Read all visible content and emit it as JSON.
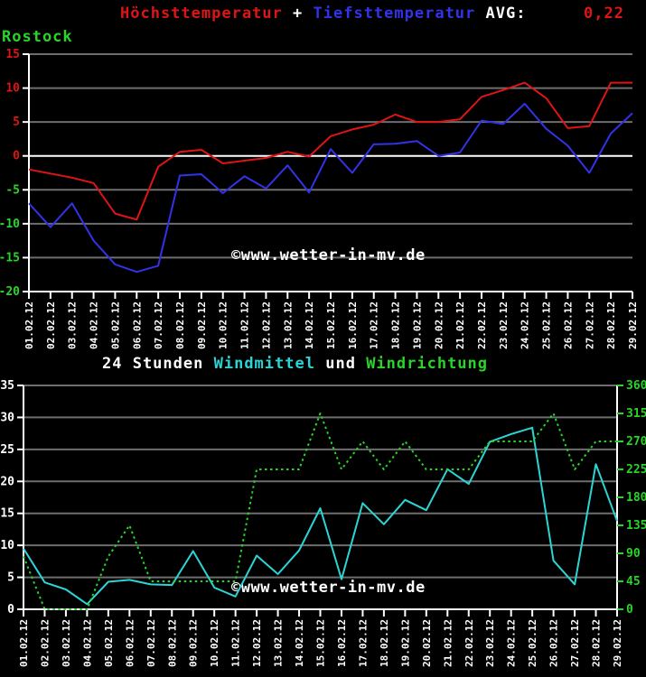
{
  "header": {
    "series1_label": "Höchsttemperatur",
    "separator": "+",
    "series2_label": "Tiefsttemperatur",
    "avg_label": "AVG:",
    "avg_value": "0,22",
    "station": "Rostock"
  },
  "wind_header": {
    "prefix": "24 Stunden",
    "windmittel_label": "Windmittel",
    "conjunction": "und",
    "windrichtung_label": "Windrichtung"
  },
  "watermark": "©www.wetter-in-mv.de",
  "colors": {
    "red": "#df1414",
    "blue": "#3232e8",
    "cyan": "#2bd5d5",
    "green": "#28d528",
    "white": "#ffffff",
    "grid": "#6e6e6e",
    "background": "#000000"
  },
  "chart_data": [
    {
      "type": "line",
      "title": "Höchsttemperatur + Tiefsttemperatur",
      "station": "Rostock",
      "avg_value": "0,22",
      "ylim": [
        -20,
        15
      ],
      "ytick_step": 5,
      "ytick_labels": [
        "15",
        "10",
        "5",
        "0",
        "-5",
        "-10",
        "-15",
        "-20"
      ],
      "grid": true,
      "x_labels": [
        "01.02.12",
        "02.02.12",
        "03.02.12",
        "04.02.12",
        "05.02.12",
        "06.02.12",
        "07.02.12",
        "08.02.12",
        "09.02.12",
        "10.02.12",
        "11.02.12",
        "12.02.12",
        "13.02.12",
        "14.02.12",
        "15.02.12",
        "16.02.12",
        "17.02.12",
        "18.02.12",
        "19.02.12",
        "20.02.12",
        "21.02.12",
        "22.02.12",
        "23.02.12",
        "24.02.12",
        "25.02.12",
        "26.02.12",
        "27.02.12",
        "28.02.12",
        "29.02.12"
      ],
      "series": [
        {
          "name": "Höchsttemperatur",
          "color_key": "red",
          "style": "solid",
          "axis": "left",
          "values": [
            -2.0,
            -2.6,
            -3.2,
            -4.0,
            -8.5,
            -9.4,
            -1.6,
            0.6,
            0.9,
            -1.1,
            -0.7,
            -0.3,
            0.6,
            -0.1,
            2.9,
            3.9,
            4.6,
            6.1,
            5.0,
            5.0,
            5.4,
            8.7,
            9.7,
            10.8,
            8.5,
            4.1,
            4.4,
            10.8,
            10.8
          ]
        },
        {
          "name": "Tiefsttemperatur",
          "color_key": "blue",
          "style": "solid",
          "axis": "left",
          "values": [
            -7.0,
            -10.5,
            -7.0,
            -12.5,
            -16.0,
            -17.1,
            -16.2,
            -2.9,
            -2.7,
            -5.5,
            -3.0,
            -4.8,
            -1.4,
            -5.4,
            1.0,
            -2.5,
            1.7,
            1.8,
            2.2,
            0.0,
            0.5,
            5.2,
            4.7,
            7.7,
            4.0,
            1.5,
            -2.5,
            3.3,
            6.3
          ]
        }
      ],
      "watermark": "©www.wetter-in-mv.de"
    },
    {
      "type": "line",
      "title": "24 Stunden Windmittel und Windrichtung",
      "left_ylim": [
        0,
        35
      ],
      "left_step": 5,
      "left_tick_labels": [
        "0",
        "5",
        "10",
        "15",
        "20",
        "25",
        "30",
        "35"
      ],
      "right_ylim": [
        0,
        360
      ],
      "right_step": 45,
      "right_tick_labels": [
        "0",
        "45",
        "90",
        "135",
        "180",
        "225",
        "270",
        "315",
        "360"
      ],
      "grid": true,
      "x_labels": [
        "01.02.12",
        "02.02.12",
        "03.02.12",
        "04.02.12",
        "05.02.12",
        "06.02.12",
        "07.02.12",
        "08.02.12",
        "09.02.12",
        "10.02.12",
        "11.02.12",
        "12.02.12",
        "13.02.12",
        "14.02.12",
        "15.02.12",
        "16.02.12",
        "17.02.12",
        "18.02.12",
        "19.02.12",
        "20.02.12",
        "21.02.12",
        "22.02.12",
        "23.02.12",
        "24.02.12",
        "25.02.12",
        "26.02.12",
        "27.02.12",
        "28.02.12",
        "29.02.12"
      ],
      "series": [
        {
          "name": "Windmittel",
          "color_key": "cyan",
          "style": "solid",
          "axis": "left",
          "values": [
            9.5,
            4.2,
            3.1,
            0.8,
            4.3,
            4.6,
            3.9,
            3.8,
            9.1,
            3.4,
            2.0,
            8.4,
            5.5,
            9.2,
            15.8,
            4.7,
            16.6,
            13.3,
            17.1,
            15.5,
            21.9,
            19.6,
            26.2,
            27.4,
            28.4,
            7.6,
            3.9,
            22.7,
            13.8
          ]
        },
        {
          "name": "Windrichtung",
          "color_key": "green",
          "style": "dotted",
          "axis": "right",
          "values": [
            85,
            0,
            0,
            0,
            85,
            135,
            45,
            45,
            45,
            45,
            45,
            225,
            225,
            225,
            315,
            225,
            270,
            225,
            270,
            225,
            225,
            225,
            270,
            270,
            270,
            315,
            225,
            270,
            270
          ]
        }
      ],
      "watermark": "©www.wetter-in-mv.de"
    }
  ]
}
